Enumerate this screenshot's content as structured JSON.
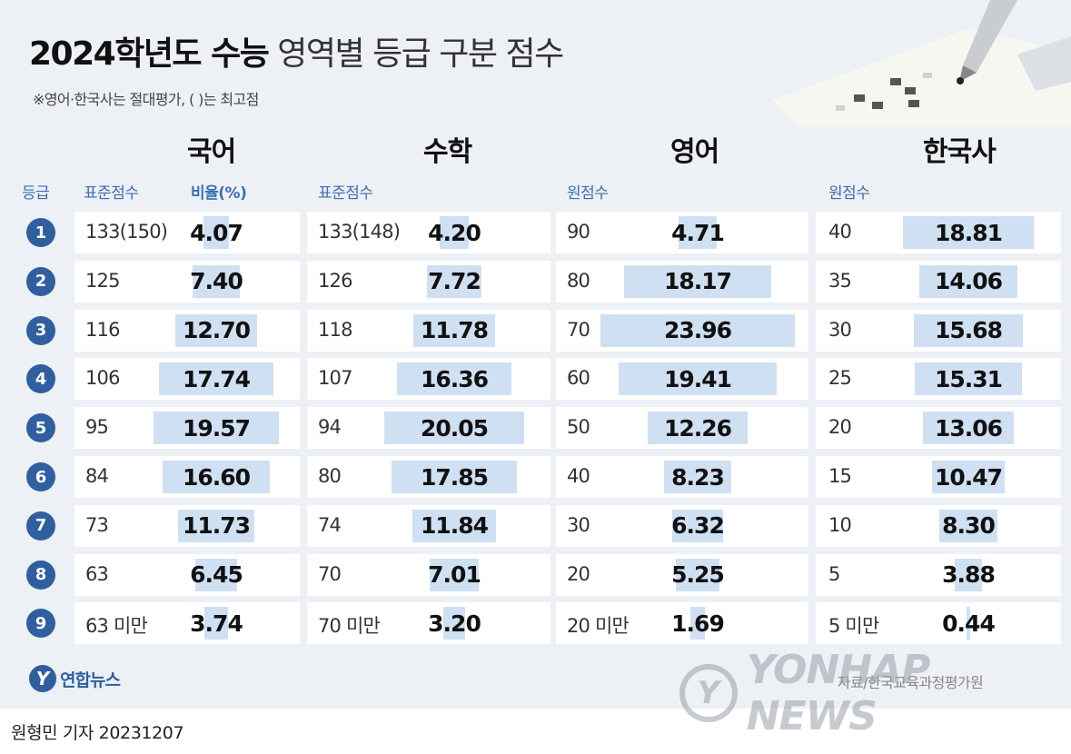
{
  "title_bold": "2024학년도 수능",
  "title_light": "영역별 등급 구분 점수",
  "note": "※영어·한국사는 절대평가, ( )는 최고점",
  "subjects": {
    "korean": "국어",
    "math": "수학",
    "english": "영어",
    "history": "한국사"
  },
  "col_headers": {
    "grade": "등급",
    "korean_std": "표준점수",
    "korean_ratio": "비율(%)",
    "math_std": "표준점수",
    "english_raw": "원점수",
    "history_raw": "원점수"
  },
  "footer": {
    "logo_text": "연합뉴스",
    "source": "자료/한국교육과정평가원",
    "watermark": "YONHAP NEWS",
    "credit": "원형민 기자  20231207"
  },
  "colors": {
    "accent": "#2f5f9f",
    "bar": "#cfe0f3",
    "panel": "#edf0f4"
  },
  "chart_data": {
    "type": "table",
    "title": "2024학년도 수능 영역별 등급 구분 점수",
    "bar_max_percent": 24,
    "rows": [
      {
        "grade": "1",
        "korean_score": "133(150)",
        "korean_pct": 4.07,
        "math_score": "133(148)",
        "math_pct": 4.2,
        "english_score": "90",
        "english_pct": 4.71,
        "history_score": "40",
        "history_pct": 18.81
      },
      {
        "grade": "2",
        "korean_score": "125",
        "korean_pct": 7.4,
        "math_score": "126",
        "math_pct": 7.72,
        "english_score": "80",
        "english_pct": 18.17,
        "history_score": "35",
        "history_pct": 14.06
      },
      {
        "grade": "3",
        "korean_score": "116",
        "korean_pct": 12.7,
        "math_score": "118",
        "math_pct": 11.78,
        "english_score": "70",
        "english_pct": 23.96,
        "history_score": "30",
        "history_pct": 15.68
      },
      {
        "grade": "4",
        "korean_score": "106",
        "korean_pct": 17.74,
        "math_score": "107",
        "math_pct": 16.36,
        "english_score": "60",
        "english_pct": 19.41,
        "history_score": "25",
        "history_pct": 15.31
      },
      {
        "grade": "5",
        "korean_score": "95",
        "korean_pct": 19.57,
        "math_score": "94",
        "math_pct": 20.05,
        "english_score": "50",
        "english_pct": 12.26,
        "history_score": "20",
        "history_pct": 13.06
      },
      {
        "grade": "6",
        "korean_score": "84",
        "korean_pct": 16.6,
        "math_score": "80",
        "math_pct": 17.85,
        "english_score": "40",
        "english_pct": 8.23,
        "history_score": "15",
        "history_pct": 10.47
      },
      {
        "grade": "7",
        "korean_score": "73",
        "korean_pct": 11.73,
        "math_score": "74",
        "math_pct": 11.84,
        "english_score": "30",
        "english_pct": 6.32,
        "history_score": "10",
        "history_pct": 8.3
      },
      {
        "grade": "8",
        "korean_score": "63",
        "korean_pct": 6.45,
        "math_score": "70",
        "math_pct": 7.01,
        "english_score": "20",
        "english_pct": 5.25,
        "history_score": "5",
        "history_pct": 3.88
      },
      {
        "grade": "9",
        "korean_score": "63 미만",
        "korean_pct": 3.74,
        "math_score": "70 미만",
        "math_pct": 3.2,
        "english_score": "20 미만",
        "english_pct": 1.69,
        "history_score": "5 미만",
        "history_pct": 0.44
      }
    ]
  }
}
